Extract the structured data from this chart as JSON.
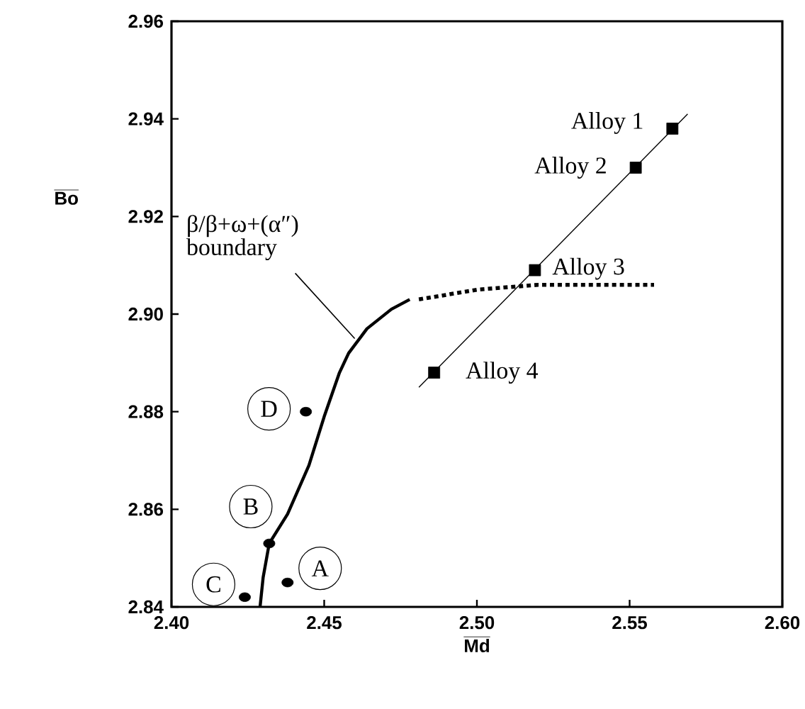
{
  "chart_data": {
    "type": "scatter",
    "xlabel": "Md",
    "ylabel": "Bo",
    "xlim": [
      2.4,
      2.6
    ],
    "ylim": [
      2.84,
      2.96
    ],
    "xticks": [
      {
        "value": 2.4,
        "label": "2.40"
      },
      2.45,
      {
        "value": 2.5,
        "label": "2.50"
      },
      2.55,
      {
        "value": 2.6,
        "label": "2.60"
      }
    ],
    "yticks": [
      2.84,
      2.86,
      2.88,
      {
        "value": 2.9,
        "label": "2.90"
      },
      2.92,
      2.94,
      2.96
    ],
    "series": [
      {
        "type": "line",
        "color": "#000000",
        "line_style": "solid",
        "marker": "none",
        "x": [
          2.429,
          2.43,
          2.432,
          2.438,
          2.445,
          2.45,
          2.455,
          2.458,
          2.464,
          2.472,
          2.478
        ],
        "values": [
          2.84,
          2.846,
          2.853,
          2.859,
          2.869,
          2.879,
          2.888,
          2.892,
          2.897,
          2.901,
          2.903
        ]
      },
      {
        "type": "line",
        "color": "#000000",
        "line_style": "dotted",
        "marker": "none",
        "x": [
          2.481,
          2.5,
          2.52,
          2.558
        ],
        "values": [
          2.903,
          2.905,
          2.906,
          2.906
        ]
      },
      {
        "type": "line",
        "color": "#000000",
        "line_style": "solid",
        "marker": "none",
        "x": [
          2.481,
          2.569
        ],
        "values": [
          2.885,
          2.941
        ]
      },
      {
        "color": "#000000",
        "marker": "square",
        "x": [
          2.564,
          2.552,
          2.519,
          2.486
        ],
        "values": [
          2.938,
          2.93,
          2.909,
          2.888
        ]
      },
      {
        "color": "#000000",
        "marker": "circle",
        "x": [
          2.444,
          2.432,
          2.424,
          2.438
        ],
        "values": [
          2.88,
          2.853,
          2.842,
          2.845
        ]
      }
    ],
    "annotations": [
      {
        "text": "β/β+ω+(α″) boundary",
        "x": 2.46,
        "y": 2.895
      },
      {
        "text": "Alloy 1",
        "x": 2.564,
        "y": 2.938
      },
      {
        "text": "Alloy 2",
        "x": 2.552,
        "y": 2.93
      },
      {
        "text": "Alloy 3",
        "x": 2.519,
        "y": 2.909
      },
      {
        "text": "Alloy 4",
        "x": 2.486,
        "y": 2.888
      },
      {
        "text": "D",
        "x": 2.444,
        "y": 2.88
      },
      {
        "text": "B",
        "x": 2.432,
        "y": 2.853
      },
      {
        "text": "C",
        "x": 2.424,
        "y": 2.842
      },
      {
        "text": "A",
        "x": 2.438,
        "y": 2.845
      }
    ]
  }
}
